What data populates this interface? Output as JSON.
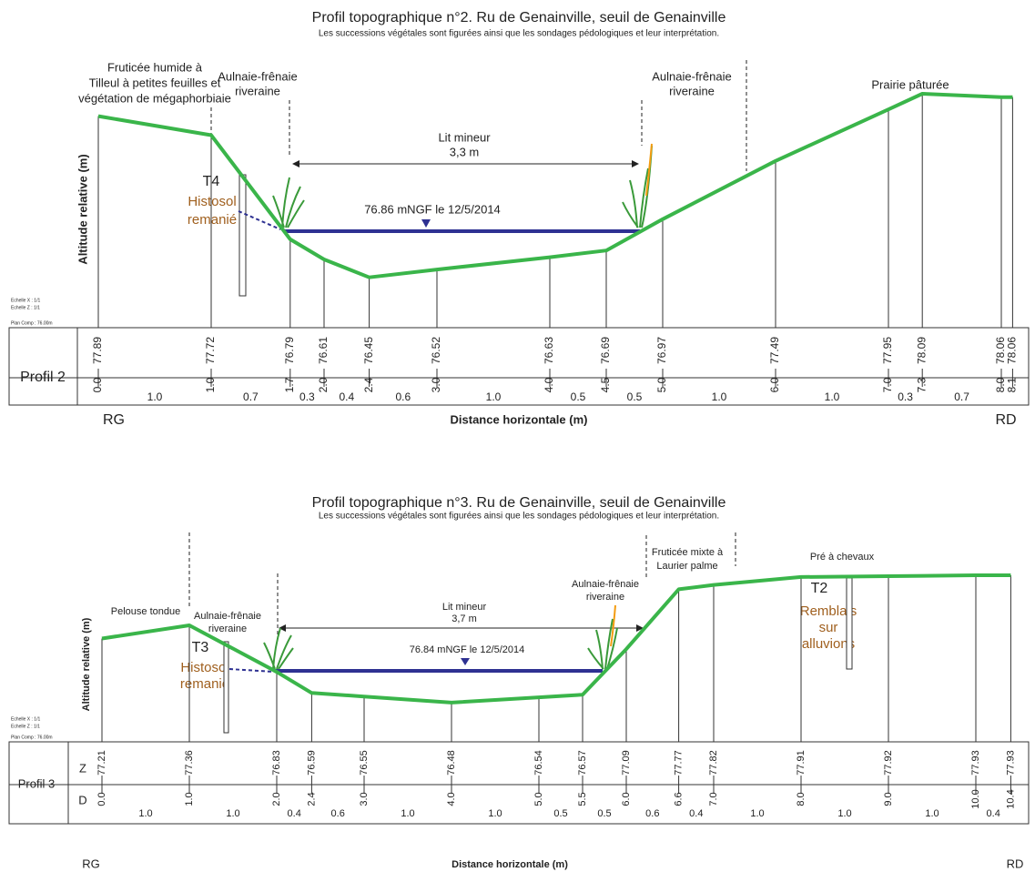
{
  "profiles": [
    {
      "title": "Profil topographique n°2. Ru de Genainville, seuil de Genainville",
      "subtitle": "Les successions végétales sont figurées ainsi que les sondages pédologiques et leur interprétation.",
      "name": "Profil 2",
      "y_axis_label": "Altitude relative (m)",
      "x_axis_label": "Distance horizontale (m)",
      "left_bank": "RG",
      "right_bank": "RD",
      "scale_notes": [
        "Echelle X : 1/1",
        "Echelle Z : 1/1",
        "Plan Comp : 76.00m"
      ],
      "zones": [
        [
          "Fruticée humide à",
          "Tilleul à petites feuilles et",
          "végétation de mégaphorbiaie"
        ],
        [
          "Aulnaie-frênaie",
          "riveraine"
        ],
        [
          "Aulnaie-frênaie",
          "riveraine"
        ],
        [
          "Prairie pâturée"
        ]
      ],
      "channel": {
        "label": "Lit mineur",
        "width": "3,3 m"
      },
      "water_level": "76.86 mNGF le 12/5/2014",
      "soil_pits": [
        {
          "id": "T4",
          "lines": [
            "Histosol",
            "remanié"
          ]
        }
      ],
      "distances": [
        "0.0",
        "1.0",
        "1.7",
        "2.0",
        "2.4",
        "3.0",
        "4.0",
        "4.5",
        "5.0",
        "6.0",
        "7.0",
        "7.3",
        "8.0",
        "8.1"
      ],
      "altitudes": [
        "77.89",
        "77.72",
        "76.79",
        "76.61",
        "76.45",
        "76.52",
        "76.63",
        "76.69",
        "76.97",
        "77.49",
        "77.95",
        "78.09",
        "78.06",
        "78.06"
      ],
      "segments": [
        "1.0",
        "0.7",
        "0.3",
        "0.4",
        "0.6",
        "1.0",
        "0.5",
        "0.5",
        "1.0",
        "1.0",
        "0.3",
        "0.7",
        null
      ]
    },
    {
      "title": "Profil topographique n°3. Ru de Genainville, seuil de Genainville",
      "subtitle": "Les successions végétales sont figurées ainsi que les sondages pédologiques et leur interprétation.",
      "name": "Profil 3",
      "row_labels": [
        "Z",
        "D"
      ],
      "y_axis_label": "Altitude relative (m)",
      "x_axis_label": "Distance horizontale (m)",
      "left_bank": "RG",
      "right_bank": "RD",
      "scale_notes": [
        "Echelle X : 1/1",
        "Echelle Z : 1/1",
        "Plan Comp : 76.00m"
      ],
      "zones": [
        [
          "Pelouse tondue"
        ],
        [
          "Aulnaie-frênaie",
          "riveraine"
        ],
        [
          "Aulnaie-frênaie",
          "riveraine"
        ],
        [
          "Fruticée mixte à",
          "Laurier palme"
        ],
        [
          "Pré à chevaux"
        ]
      ],
      "channel": {
        "label": "Lit mineur",
        "width": "3,7 m"
      },
      "water_level": "76.84 mNGF le 12/5/2014",
      "soil_pits": [
        {
          "id": "T3",
          "lines": [
            "Histosol",
            "remanié"
          ]
        },
        {
          "id": "T2",
          "lines": [
            "Remblais",
            "sur",
            "alluvions"
          ]
        }
      ],
      "distances": [
        "0.0",
        "1.0",
        "2.0",
        "2.4",
        "3.0",
        "4.0",
        "5.0",
        "5.5",
        "6.0",
        "6.6",
        "7.0",
        "8.0",
        "9.0",
        "10.0",
        "10.4"
      ],
      "altitudes": [
        "77.21",
        "77.36",
        "76.83",
        "76.59",
        "76.55",
        "76.48",
        "76.54",
        "76.57",
        "77.09",
        "77.77",
        "77.82",
        "77.91",
        "77.92",
        "77.93",
        "77.93"
      ],
      "segments": [
        "1.0",
        "1.0",
        "0.4",
        "0.6",
        "1.0",
        "1.0",
        "0.5",
        "0.5",
        "0.6",
        "0.4",
        "1.0",
        "1.0",
        "1.0",
        "0.4"
      ]
    }
  ]
}
